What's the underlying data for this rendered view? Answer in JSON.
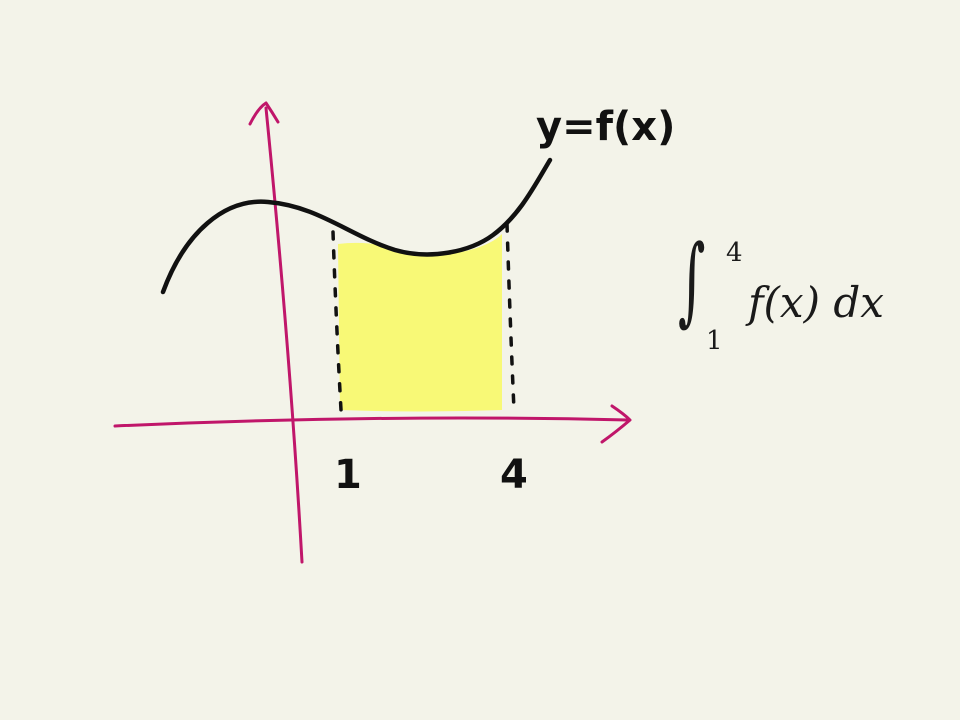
{
  "graph": {
    "curve_label": "y=f(x)",
    "tick_labels": [
      "1",
      "4"
    ],
    "region_fill": "#f8f976",
    "axis_color": "#c0166a",
    "ink_color": "#111111",
    "background": "#f3f3e9"
  },
  "formula": {
    "integral_symbol": "∫",
    "upper_limit": "4",
    "lower_limit": "1",
    "integrand": "f(x) dx"
  }
}
